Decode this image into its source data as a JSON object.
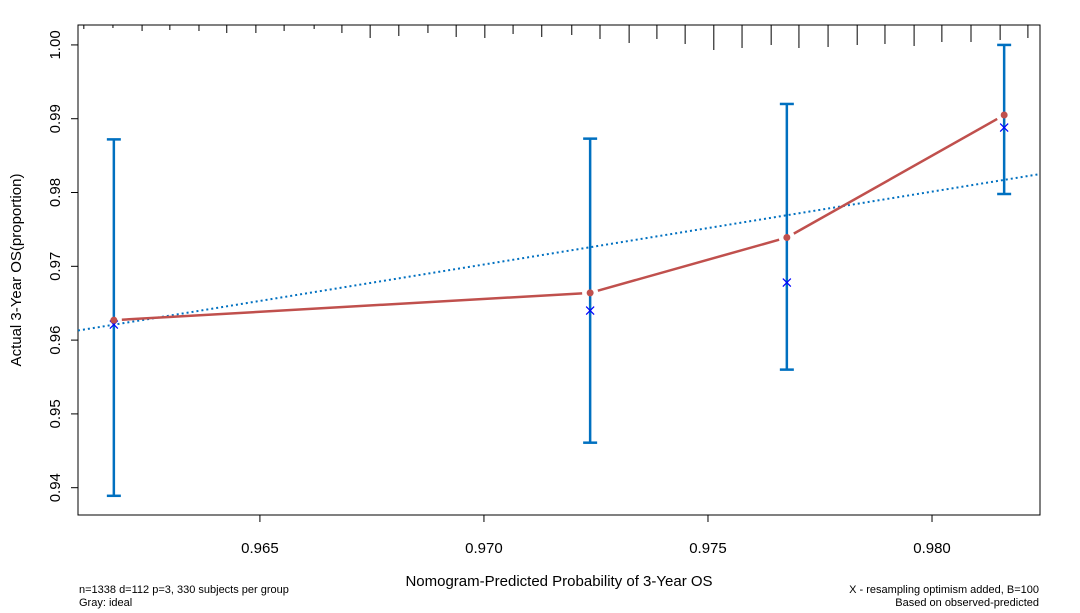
{
  "chart_data": {
    "type": "line",
    "xlabel": "Nomogram-Predicted Probability of 3-Year OS",
    "ylabel": "Actual 3-Year OS(proportion)",
    "xlim": [
      0.96094,
      0.98241
    ],
    "ylim": [
      0.9363,
      1.0027
    ],
    "x_ticks": [
      0.965,
      0.97,
      0.975,
      0.98
    ],
    "x_tick_labels": [
      "0.965",
      "0.970",
      "0.975",
      "0.980"
    ],
    "y_ticks": [
      0.94,
      0.95,
      0.96,
      0.97,
      0.98,
      0.99,
      1.0
    ],
    "y_tick_labels": [
      "0.94",
      "0.95",
      "0.96",
      "0.97",
      "0.98",
      "0.99",
      "1.00"
    ],
    "grid": false,
    "points": [
      {
        "x": 0.96174,
        "observed": 0.9627,
        "corrected": 0.9621,
        "ci_low": 0.9389,
        "ci_high": 0.9872
      },
      {
        "x": 0.97237,
        "observed": 0.9664,
        "corrected": 0.964,
        "ci_low": 0.9461,
        "ci_high": 0.9873
      },
      {
        "x": 0.97676,
        "observed": 0.9739,
        "corrected": 0.9678,
        "ci_low": 0.956,
        "ci_high": 0.992
      },
      {
        "x": 0.98161,
        "observed": 0.9905,
        "corrected": 0.9888,
        "ci_low": 0.9798,
        "ci_high": 1.0
      }
    ],
    "ideal_line": [
      [
        0.96094,
        0.9613
      ],
      [
        0.98241,
        0.9825
      ]
    ],
    "rug": [
      [
        0.96107,
        0.16
      ],
      [
        0.96172,
        0.12
      ],
      [
        0.96237,
        0.24
      ],
      [
        0.96299,
        0.2
      ],
      [
        0.96364,
        0.24
      ],
      [
        0.96426,
        0.32
      ],
      [
        0.96491,
        0.32
      ],
      [
        0.96554,
        0.24
      ],
      [
        0.96621,
        0.16
      ],
      [
        0.96683,
        0.32
      ],
      [
        0.96746,
        0.52
      ],
      [
        0.9681,
        0.44
      ],
      [
        0.96875,
        0.32
      ],
      [
        0.96938,
        0.48
      ],
      [
        0.97002,
        0.52
      ],
      [
        0.97065,
        0.36
      ],
      [
        0.97129,
        0.48
      ],
      [
        0.97196,
        0.4
      ],
      [
        0.97259,
        0.56
      ],
      [
        0.97324,
        0.72
      ],
      [
        0.97386,
        0.56
      ],
      [
        0.97449,
        0.76
      ],
      [
        0.97513,
        1.0
      ],
      [
        0.97576,
        0.92
      ],
      [
        0.97641,
        0.8
      ],
      [
        0.97703,
        0.92
      ],
      [
        0.97768,
        0.88
      ],
      [
        0.97833,
        0.8
      ],
      [
        0.97895,
        0.76
      ],
      [
        0.9796,
        0.84
      ],
      [
        0.98022,
        0.68
      ],
      [
        0.98087,
        0.68
      ],
      [
        0.98152,
        0.6
      ],
      [
        0.98214,
        0.52
      ]
    ],
    "colors": {
      "observed": "#c0504d",
      "corrected": "#0000ff",
      "ci": "#0070c0",
      "ideal": "#0070c0",
      "axis": "#000000"
    },
    "notes": {
      "left1": "n=1338 d=112 p=3, 330 subjects per group",
      "left2": "Gray: ideal",
      "right1": "X - resampling optimism added, B=100",
      "right2": "Based on observed-predicted"
    }
  }
}
